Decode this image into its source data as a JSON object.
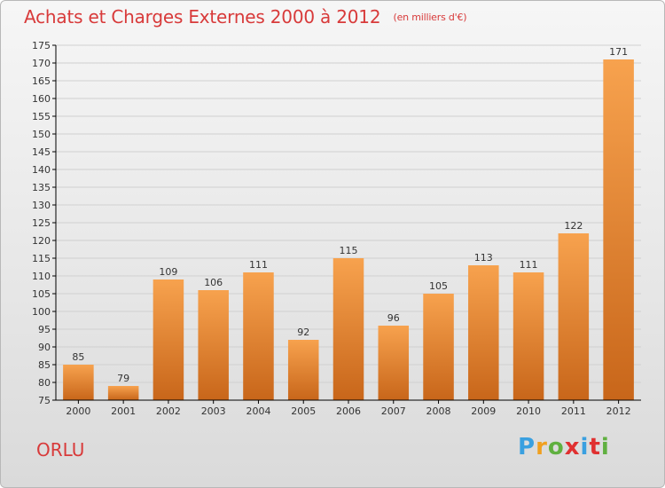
{
  "header": {
    "title": "Achats et Charges Externes 2000 à 2012",
    "subtitle": "(en milliers d'€)"
  },
  "footer": {
    "location": "ORLU",
    "logo": {
      "letters": [
        "P",
        "r",
        "o",
        "x",
        "i",
        "t",
        "i"
      ],
      "colors": [
        "#3aa0e0",
        "#f0a020",
        "#60b040",
        "#e03030",
        "#3aa0e0",
        "#e03030",
        "#60b040"
      ]
    }
  },
  "colors": {
    "bar_top": "#f7a24e",
    "bar_bottom": "#c8661a",
    "title": "#d83a3a",
    "grid": "#d0d0d0",
    "axis": "#000000"
  },
  "chart_data": {
    "type": "bar",
    "title": "Achats et Charges Externes 2000 à 2012",
    "subtitle": "(en milliers d'€)",
    "xlabel": "",
    "ylabel": "",
    "categories": [
      "2000",
      "2001",
      "2002",
      "2003",
      "2004",
      "2005",
      "2006",
      "2007",
      "2008",
      "2009",
      "2010",
      "2011",
      "2012"
    ],
    "values": [
      85,
      79,
      109,
      106,
      111,
      92,
      115,
      96,
      105,
      113,
      111,
      122,
      171
    ],
    "ylim": [
      75,
      175
    ],
    "yticks": [
      75,
      80,
      85,
      90,
      95,
      100,
      105,
      110,
      115,
      120,
      125,
      130,
      135,
      140,
      145,
      150,
      155,
      160,
      165,
      170,
      175
    ],
    "grid": true,
    "legend": "none"
  }
}
